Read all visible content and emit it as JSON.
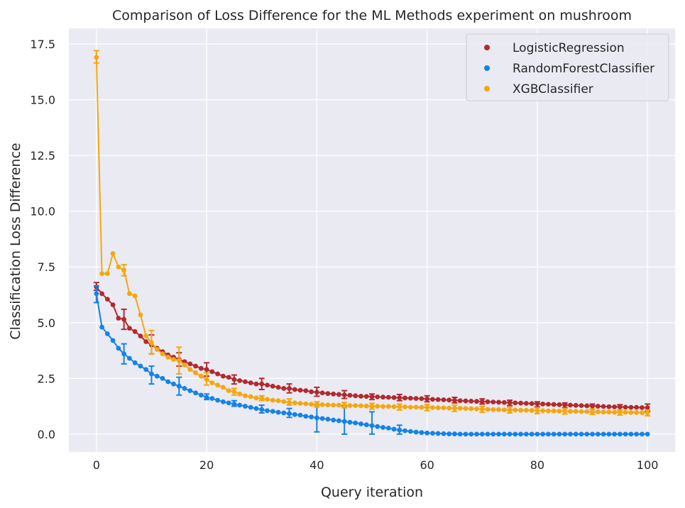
{
  "chart_data": {
    "type": "line",
    "title": "Comparison of Loss Difference for the ML Methods experiment on mushroom",
    "xlabel": "Query iteration",
    "ylabel": "Classification Loss Difference",
    "xlim": [
      -5,
      105
    ],
    "ylim": [
      -0.8,
      18.2
    ],
    "xticks": [
      0,
      20,
      40,
      60,
      80,
      100
    ],
    "yticks": [
      0.0,
      2.5,
      5.0,
      7.5,
      10.0,
      12.5,
      15.0,
      17.5
    ],
    "xtick_labels": [
      "0",
      "20",
      "40",
      "60",
      "80",
      "100"
    ],
    "ytick_labels": [
      "0.0",
      "2.5",
      "5.0",
      "7.5",
      "10.0",
      "12.5",
      "15.0",
      "17.5"
    ],
    "grid": true,
    "legend_position": "top-right",
    "background": "#eaeaf2",
    "series": [
      {
        "name": "LogisticRegression",
        "color": "#b22a2e",
        "x": [
          0,
          1,
          2,
          3,
          4,
          5,
          6,
          7,
          8,
          9,
          10,
          11,
          12,
          13,
          14,
          15,
          16,
          17,
          18,
          19,
          20,
          21,
          22,
          23,
          24,
          25,
          26,
          27,
          28,
          29,
          30,
          31,
          32,
          33,
          34,
          35,
          36,
          37,
          38,
          39,
          40,
          41,
          42,
          43,
          44,
          45,
          46,
          47,
          48,
          49,
          50,
          51,
          52,
          53,
          54,
          55,
          56,
          57,
          58,
          59,
          60,
          61,
          62,
          63,
          64,
          65,
          66,
          67,
          68,
          69,
          70,
          71,
          72,
          73,
          74,
          75,
          76,
          77,
          78,
          79,
          80,
          81,
          82,
          83,
          84,
          85,
          86,
          87,
          88,
          89,
          90,
          91,
          92,
          93,
          94,
          95,
          96,
          97,
          98,
          99,
          100
        ],
        "y": [
          6.6,
          6.3,
          6.05,
          5.8,
          5.2,
          5.15,
          4.75,
          4.6,
          4.4,
          4.15,
          4.0,
          3.85,
          3.7,
          3.55,
          3.45,
          3.35,
          3.25,
          3.15,
          3.05,
          2.95,
          2.9,
          2.8,
          2.7,
          2.6,
          2.55,
          2.45,
          2.4,
          2.35,
          2.3,
          2.25,
          2.25,
          2.2,
          2.15,
          2.1,
          2.05,
          2.05,
          2.0,
          1.97,
          1.95,
          1.9,
          1.88,
          1.85,
          1.82,
          1.8,
          1.78,
          1.76,
          1.74,
          1.72,
          1.7,
          1.69,
          1.68,
          1.67,
          1.66,
          1.65,
          1.64,
          1.63,
          1.62,
          1.61,
          1.6,
          1.59,
          1.58,
          1.56,
          1.55,
          1.54,
          1.53,
          1.52,
          1.5,
          1.49,
          1.48,
          1.47,
          1.46,
          1.45,
          1.44,
          1.43,
          1.42,
          1.41,
          1.4,
          1.39,
          1.38,
          1.37,
          1.36,
          1.35,
          1.34,
          1.33,
          1.32,
          1.31,
          1.3,
          1.29,
          1.28,
          1.27,
          1.26,
          1.25,
          1.24,
          1.23,
          1.22,
          1.22,
          1.21,
          1.2,
          1.2,
          1.19,
          1.19
        ],
        "error_bars": [
          {
            "x": 0,
            "low": 6.45,
            "high": 6.8
          },
          {
            "x": 5,
            "low": 4.7,
            "high": 5.6
          },
          {
            "x": 10,
            "low": 3.6,
            "high": 4.45
          },
          {
            "x": 15,
            "low": 3.05,
            "high": 3.65
          },
          {
            "x": 20,
            "low": 2.6,
            "high": 3.2
          },
          {
            "x": 25,
            "low": 2.25,
            "high": 2.65
          },
          {
            "x": 30,
            "low": 2.0,
            "high": 2.5
          },
          {
            "x": 35,
            "low": 1.85,
            "high": 2.25
          },
          {
            "x": 40,
            "low": 1.7,
            "high": 2.1
          },
          {
            "x": 45,
            "low": 1.6,
            "high": 1.95
          },
          {
            "x": 50,
            "low": 1.55,
            "high": 1.8
          },
          {
            "x": 55,
            "low": 1.5,
            "high": 1.78
          },
          {
            "x": 60,
            "low": 1.45,
            "high": 1.72
          },
          {
            "x": 65,
            "low": 1.4,
            "high": 1.65
          },
          {
            "x": 70,
            "low": 1.35,
            "high": 1.58
          },
          {
            "x": 75,
            "low": 1.28,
            "high": 1.52
          },
          {
            "x": 80,
            "low": 1.22,
            "high": 1.45
          },
          {
            "x": 85,
            "low": 1.18,
            "high": 1.4
          },
          {
            "x": 90,
            "low": 1.12,
            "high": 1.35
          },
          {
            "x": 95,
            "low": 1.08,
            "high": 1.32
          },
          {
            "x": 100,
            "low": 1.02,
            "high": 1.35
          }
        ]
      },
      {
        "name": "RandomForestClassifier",
        "color": "#1483e8",
        "x": [
          0,
          1,
          2,
          3,
          4,
          5,
          6,
          7,
          8,
          9,
          10,
          11,
          12,
          13,
          14,
          15,
          16,
          17,
          18,
          19,
          20,
          21,
          22,
          23,
          24,
          25,
          26,
          27,
          28,
          29,
          30,
          31,
          32,
          33,
          34,
          35,
          36,
          37,
          38,
          39,
          40,
          41,
          42,
          43,
          44,
          45,
          46,
          47,
          48,
          49,
          50,
          51,
          52,
          53,
          54,
          55,
          56,
          57,
          58,
          59,
          60,
          61,
          62,
          63,
          64,
          65,
          66,
          67,
          68,
          69,
          70,
          71,
          72,
          73,
          74,
          75,
          76,
          77,
          78,
          79,
          80,
          81,
          82,
          83,
          84,
          85,
          86,
          87,
          88,
          89,
          90,
          91,
          92,
          93,
          94,
          95,
          96,
          97,
          98,
          99,
          100
        ],
        "y": [
          6.3,
          4.8,
          4.5,
          4.2,
          3.85,
          3.6,
          3.4,
          3.2,
          3.05,
          2.9,
          2.7,
          2.6,
          2.5,
          2.35,
          2.25,
          2.15,
          2.05,
          1.95,
          1.85,
          1.75,
          1.65,
          1.6,
          1.52,
          1.45,
          1.4,
          1.35,
          1.3,
          1.25,
          1.2,
          1.15,
          1.1,
          1.05,
          1.02,
          0.98,
          0.95,
          0.92,
          0.88,
          0.85,
          0.8,
          0.77,
          0.73,
          0.7,
          0.67,
          0.63,
          0.6,
          0.57,
          0.53,
          0.5,
          0.46,
          0.42,
          0.38,
          0.34,
          0.3,
          0.27,
          0.22,
          0.18,
          0.15,
          0.12,
          0.09,
          0.07,
          0.05,
          0.04,
          0.03,
          0.02,
          0.01,
          0.01,
          0.0,
          0.0,
          0.0,
          0.0,
          0.0,
          0.0,
          0.0,
          0.0,
          0.0,
          0.0,
          0.0,
          0.0,
          0.0,
          0.0,
          0.0,
          0.0,
          0.0,
          0.0,
          0.0,
          0.0,
          0.0,
          0.0,
          0.0,
          0.0,
          0.0,
          0.0,
          0.0,
          0.0,
          0.0,
          0.0,
          0.0,
          0.0,
          0.0,
          0.0,
          0.0
        ],
        "error_bars": [
          {
            "x": 0,
            "low": 5.9,
            "high": 6.65
          },
          {
            "x": 5,
            "low": 3.15,
            "high": 4.05
          },
          {
            "x": 10,
            "low": 2.25,
            "high": 3.05
          },
          {
            "x": 15,
            "low": 1.75,
            "high": 2.55
          },
          {
            "x": 20,
            "low": 1.55,
            "high": 1.8
          },
          {
            "x": 25,
            "low": 1.25,
            "high": 1.5
          },
          {
            "x": 30,
            "low": 0.95,
            "high": 1.3
          },
          {
            "x": 35,
            "low": 0.75,
            "high": 1.15
          },
          {
            "x": 40,
            "low": 0.1,
            "high": 1.3
          },
          {
            "x": 45,
            "low": 0.0,
            "high": 1.25
          },
          {
            "x": 50,
            "low": 0.0,
            "high": 1.0
          },
          {
            "x": 55,
            "low": 0.0,
            "high": 0.4
          }
        ]
      },
      {
        "name": "XGBClassifier",
        "color": "#f5a70f",
        "x": [
          0,
          1,
          2,
          3,
          4,
          5,
          6,
          7,
          8,
          9,
          10,
          11,
          12,
          13,
          14,
          15,
          16,
          17,
          18,
          19,
          20,
          21,
          22,
          23,
          24,
          25,
          26,
          27,
          28,
          29,
          30,
          31,
          32,
          33,
          34,
          35,
          36,
          37,
          38,
          39,
          40,
          41,
          42,
          43,
          44,
          45,
          46,
          47,
          48,
          49,
          50,
          51,
          52,
          53,
          54,
          55,
          56,
          57,
          58,
          59,
          60,
          61,
          62,
          63,
          64,
          65,
          66,
          67,
          68,
          69,
          70,
          71,
          72,
          73,
          74,
          75,
          76,
          77,
          78,
          79,
          80,
          81,
          82,
          83,
          84,
          85,
          86,
          87,
          88,
          89,
          90,
          91,
          92,
          93,
          94,
          95,
          96,
          97,
          98,
          99,
          100
        ],
        "y": [
          16.9,
          7.2,
          7.2,
          8.1,
          7.5,
          7.35,
          6.3,
          6.2,
          5.35,
          4.4,
          4.1,
          3.8,
          3.6,
          3.45,
          3.35,
          3.3,
          3.1,
          2.9,
          2.75,
          2.6,
          2.45,
          2.3,
          2.2,
          2.1,
          1.95,
          1.9,
          1.8,
          1.72,
          1.68,
          1.62,
          1.6,
          1.56,
          1.52,
          1.5,
          1.46,
          1.42,
          1.4,
          1.38,
          1.36,
          1.34,
          1.33,
          1.32,
          1.31,
          1.3,
          1.3,
          1.29,
          1.28,
          1.28,
          1.27,
          1.26,
          1.25,
          1.25,
          1.24,
          1.24,
          1.23,
          1.22,
          1.22,
          1.21,
          1.21,
          1.2,
          1.2,
          1.19,
          1.18,
          1.18,
          1.17,
          1.16,
          1.16,
          1.15,
          1.14,
          1.13,
          1.12,
          1.11,
          1.1,
          1.1,
          1.09,
          1.08,
          1.08,
          1.07,
          1.07,
          1.06,
          1.05,
          1.05,
          1.04,
          1.04,
          1.03,
          1.03,
          1.02,
          1.02,
          1.01,
          1.01,
          1.0,
          1.0,
          0.99,
          0.99,
          0.98,
          0.98,
          0.98,
          0.97,
          0.97,
          0.96,
          0.96
        ],
        "error_bars": [
          {
            "x": 0,
            "low": 16.65,
            "high": 17.2
          },
          {
            "x": 5,
            "low": 7.1,
            "high": 7.6
          },
          {
            "x": 10,
            "low": 3.6,
            "high": 4.65
          },
          {
            "x": 15,
            "low": 2.7,
            "high": 3.9
          },
          {
            "x": 20,
            "low": 2.2,
            "high": 2.75
          },
          {
            "x": 25,
            "low": 1.75,
            "high": 2.05
          },
          {
            "x": 30,
            "low": 1.5,
            "high": 1.72
          },
          {
            "x": 35,
            "low": 1.3,
            "high": 1.58
          },
          {
            "x": 40,
            "low": 1.22,
            "high": 1.45
          },
          {
            "x": 45,
            "low": 1.18,
            "high": 1.42
          },
          {
            "x": 50,
            "low": 1.12,
            "high": 1.38
          },
          {
            "x": 55,
            "low": 1.08,
            "high": 1.35
          },
          {
            "x": 60,
            "low": 1.05,
            "high": 1.32
          },
          {
            "x": 65,
            "low": 1.02,
            "high": 1.3
          },
          {
            "x": 70,
            "low": 0.98,
            "high": 1.25
          },
          {
            "x": 75,
            "low": 0.95,
            "high": 1.2
          },
          {
            "x": 80,
            "low": 0.92,
            "high": 1.18
          },
          {
            "x": 85,
            "low": 0.9,
            "high": 1.15
          },
          {
            "x": 90,
            "low": 0.88,
            "high": 1.12
          },
          {
            "x": 95,
            "low": 0.85,
            "high": 1.08
          },
          {
            "x": 100,
            "low": 0.82,
            "high": 1.08
          }
        ]
      }
    ]
  }
}
